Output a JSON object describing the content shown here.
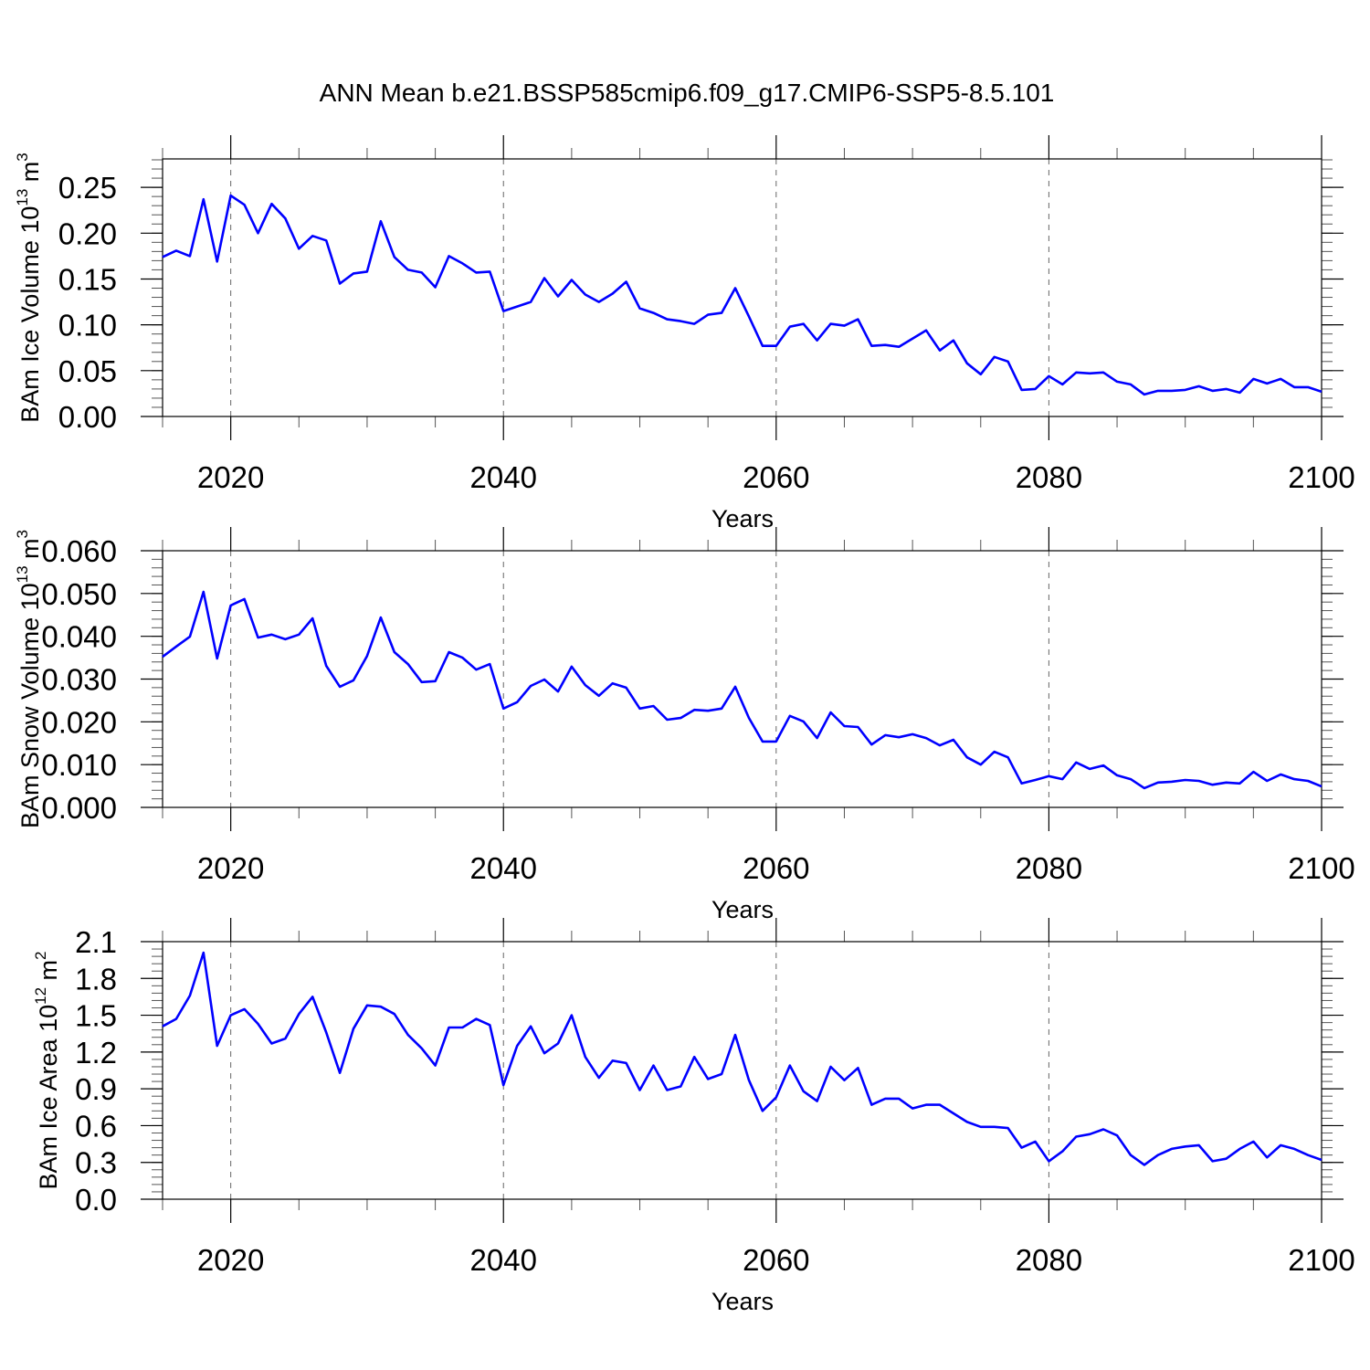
{
  "chart_data": {
    "title": "ANN Mean b.e21.BSSP585cmip6.f09_g17.CMIP6-SSP5-8.5.101",
    "line_color": "#0000ff",
    "panels": [
      {
        "type": "line",
        "xlabel": "Years",
        "ylabel": "BAm Ice Volume 10",
        "ylabel_exp": "13",
        "ylabel_unit": " m",
        "ylabel_unit_exp": "3",
        "xlim": [
          2015,
          2100
        ],
        "ylim": [
          0,
          0.281
        ],
        "xticks": [
          2020,
          2040,
          2060,
          2080,
          2100
        ],
        "xtick_labels": [
          "2020",
          "2040",
          "2060",
          "2080",
          "2100"
        ],
        "yticks": [
          0,
          0.05,
          0.1,
          0.15,
          0.2,
          0.25
        ],
        "ytick_labels": [
          "0.00",
          "0.05",
          "0.10",
          "0.15",
          "0.20",
          "0.25"
        ],
        "yminor": 0.01,
        "grid": "dashed vertical at major x ticks",
        "values": [
          0.174,
          0.181,
          0.175,
          0.237,
          0.169,
          0.241,
          0.231,
          0.2,
          0.232,
          0.216,
          0.183,
          0.197,
          0.192,
          0.145,
          0.156,
          0.158,
          0.213,
          0.174,
          0.16,
          0.157,
          0.141,
          0.175,
          0.167,
          0.157,
          0.158,
          0.115,
          0.12,
          0.125,
          0.151,
          0.131,
          0.149,
          0.133,
          0.125,
          0.134,
          0.147,
          0.118,
          0.113,
          0.106,
          0.104,
          0.101,
          0.111,
          0.113,
          0.14,
          0.109,
          0.077,
          0.077,
          0.098,
          0.101,
          0.083,
          0.101,
          0.099,
          0.106,
          0.077,
          0.078,
          0.076,
          0.085,
          0.094,
          0.072,
          0.083,
          0.058,
          0.046,
          0.065,
          0.06,
          0.029,
          0.03,
          0.044,
          0.035,
          0.048,
          0.047,
          0.048,
          0.038,
          0.035,
          0.024,
          0.028,
          0.028,
          0.029,
          0.033,
          0.028,
          0.03,
          0.026,
          0.041,
          0.036,
          0.041,
          0.032,
          0.032,
          0.027
        ]
      },
      {
        "type": "line",
        "xlabel": "Years",
        "ylabel": "BAm Snow Volume 10",
        "ylabel_exp": "13",
        "ylabel_unit": " m",
        "ylabel_unit_exp": "3",
        "xlim": [
          2015,
          2100
        ],
        "ylim": [
          0,
          0.06
        ],
        "xticks": [
          2020,
          2040,
          2060,
          2080,
          2100
        ],
        "xtick_labels": [
          "2020",
          "2040",
          "2060",
          "2080",
          "2100"
        ],
        "yticks": [
          0,
          0.01,
          0.02,
          0.03,
          0.04,
          0.05,
          0.06
        ],
        "ytick_labels": [
          "0.000",
          "0.010",
          "0.020",
          "0.030",
          "0.040",
          "0.050",
          "0.060"
        ],
        "yminor": 0.002,
        "grid": "dashed vertical at major x ticks",
        "values": [
          0.0352,
          0.0376,
          0.0399,
          0.0504,
          0.0348,
          0.0472,
          0.0487,
          0.0397,
          0.0404,
          0.0393,
          0.0404,
          0.0442,
          0.0331,
          0.0282,
          0.0297,
          0.0354,
          0.0444,
          0.0363,
          0.0335,
          0.0293,
          0.0295,
          0.0363,
          0.035,
          0.0322,
          0.0335,
          0.0231,
          0.0246,
          0.0284,
          0.0299,
          0.0271,
          0.0329,
          0.0286,
          0.0261,
          0.029,
          0.028,
          0.0231,
          0.0237,
          0.0205,
          0.0209,
          0.0228,
          0.0226,
          0.0231,
          0.0282,
          0.0209,
          0.0154,
          0.0154,
          0.0214,
          0.0201,
          0.0162,
          0.0222,
          0.019,
          0.0188,
          0.0147,
          0.0169,
          0.0164,
          0.0171,
          0.0162,
          0.0145,
          0.0158,
          0.0117,
          0.01,
          0.013,
          0.0117,
          0.0056,
          0.0064,
          0.0073,
          0.0066,
          0.0105,
          0.009,
          0.0098,
          0.0075,
          0.0066,
          0.0045,
          0.0058,
          0.006,
          0.0064,
          0.0062,
          0.0053,
          0.0058,
          0.0056,
          0.0083,
          0.0062,
          0.0077,
          0.0066,
          0.0062,
          0.0049
        ]
      },
      {
        "type": "line",
        "xlabel": "Years",
        "ylabel": "BAm Ice Area 10",
        "ylabel_exp": "12",
        "ylabel_unit": " m",
        "ylabel_unit_exp": "2",
        "xlim": [
          2015,
          2100
        ],
        "ylim": [
          0,
          2.1
        ],
        "xticks": [
          2020,
          2040,
          2060,
          2080,
          2100
        ],
        "xtick_labels": [
          "2020",
          "2040",
          "2060",
          "2080",
          "2100"
        ],
        "yticks": [
          0,
          0.3,
          0.6,
          0.9,
          1.2,
          1.5,
          1.8,
          2.1
        ],
        "ytick_labels": [
          "0.0",
          "0.3",
          "0.6",
          "0.9",
          "1.2",
          "1.5",
          "1.8",
          "2.1"
        ],
        "yminor": 0.06,
        "grid": "dashed vertical at major x ticks",
        "values": [
          1.41,
          1.47,
          1.66,
          2.01,
          1.25,
          1.5,
          1.55,
          1.43,
          1.27,
          1.31,
          1.51,
          1.65,
          1.36,
          1.03,
          1.39,
          1.58,
          1.57,
          1.51,
          1.34,
          1.23,
          1.09,
          1.4,
          1.4,
          1.47,
          1.42,
          0.93,
          1.25,
          1.41,
          1.19,
          1.27,
          1.5,
          1.16,
          0.99,
          1.13,
          1.11,
          0.89,
          1.09,
          0.89,
          0.92,
          1.16,
          0.98,
          1.02,
          1.34,
          0.97,
          0.72,
          0.83,
          1.09,
          0.88,
          0.8,
          1.08,
          0.97,
          1.07,
          0.77,
          0.82,
          0.82,
          0.74,
          0.77,
          0.77,
          0.7,
          0.63,
          0.59,
          0.59,
          0.58,
          0.42,
          0.47,
          0.31,
          0.39,
          0.51,
          0.53,
          0.57,
          0.52,
          0.36,
          0.28,
          0.36,
          0.41,
          0.43,
          0.44,
          0.31,
          0.33,
          0.41,
          0.47,
          0.34,
          0.44,
          0.41,
          0.36,
          0.32
        ]
      }
    ]
  }
}
